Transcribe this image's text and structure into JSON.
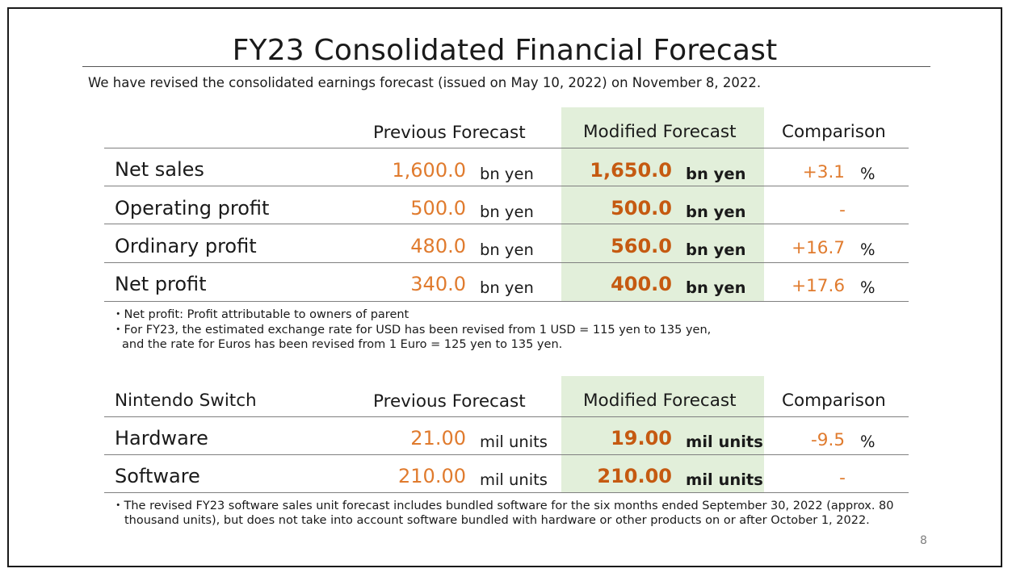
{
  "title": "FY23 Consolidated Financial Forecast",
  "subtitle": "We have revised the consolidated earnings forecast (issued on May 10, 2022) on November 8, 2022.",
  "earnings_table": {
    "headers": {
      "previous": "Previous Forecast",
      "modified": "Modified Forecast",
      "comparison": "Comparison"
    },
    "rows": [
      {
        "label": "Net sales",
        "previous_value": "1,600.0",
        "previous_unit": "bn yen",
        "modified_value": "1,650.0",
        "modified_unit": "bn yen",
        "comparison_value": "+3.1",
        "comparison_unit": "%"
      },
      {
        "label": "Operating profit",
        "previous_value": "500.0",
        "previous_unit": "bn yen",
        "modified_value": "500.0",
        "modified_unit": "bn yen",
        "comparison_value": "-",
        "comparison_unit": ""
      },
      {
        "label": "Ordinary profit",
        "previous_value": "480.0",
        "previous_unit": "bn yen",
        "modified_value": "560.0",
        "modified_unit": "bn yen",
        "comparison_value": "+16.7",
        "comparison_unit": "%"
      },
      {
        "label": "Net profit",
        "previous_value": "340.0",
        "previous_unit": "bn yen",
        "modified_value": "400.0",
        "modified_unit": "bn yen",
        "comparison_value": "+17.6",
        "comparison_unit": "%"
      }
    ],
    "notes": [
      "・Net profit: Profit attributable to owners of parent",
      "・For FY23, the estimated exchange rate for USD has been revised from 1 USD = 115 yen to 135 yen,",
      "and the rate for Euros has been revised from 1 Euro = 125 yen to 135 yen."
    ]
  },
  "switch_table": {
    "headers": {
      "label": "Nintendo Switch",
      "previous": "Previous Forecast",
      "modified": "Modified Forecast",
      "comparison": "Comparison"
    },
    "rows": [
      {
        "label": "Hardware",
        "previous_value": "21.00",
        "previous_unit": "mil units",
        "modified_value": "19.00",
        "modified_unit": "mil units",
        "comparison_value": "-9.5",
        "comparison_unit": "%"
      },
      {
        "label": "Software",
        "previous_value": "210.00",
        "previous_unit": "mil units",
        "modified_value": "210.00",
        "modified_unit": "mil units",
        "comparison_value": "-",
        "comparison_unit": ""
      }
    ],
    "notes": [
      "・The revised FY23 software sales unit forecast includes bundled software for the six months ended September 30, 2022 (approx. 80",
      "thousand units), but does not take into account software bundled with hardware or other products on or after October 1, 2022."
    ]
  },
  "page_number": "8",
  "colors": {
    "highlight": "#e2efda",
    "value_orange": "#e07b2e",
    "modified_orange": "#c55a11"
  }
}
